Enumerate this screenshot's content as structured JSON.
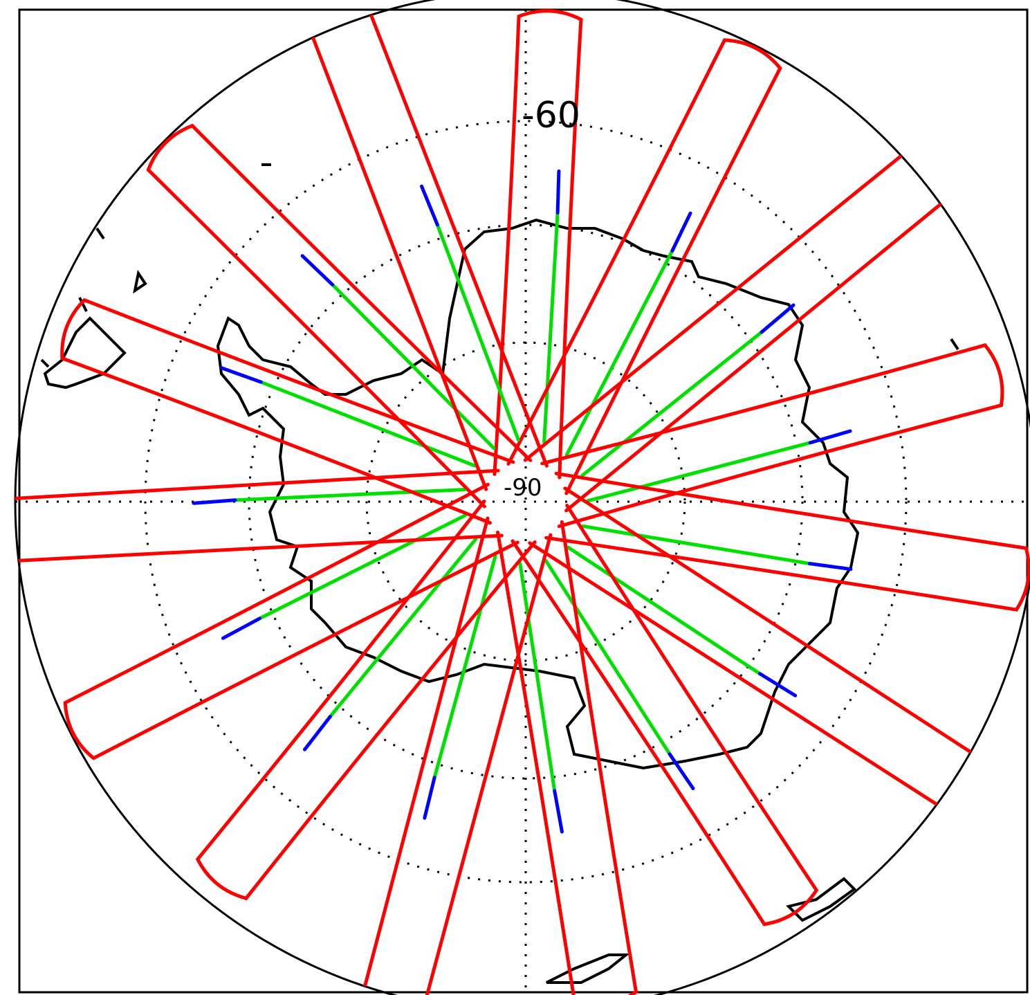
{
  "map": {
    "projection": "south-polar-stereographic",
    "latitude_labels": {
      "outer_circle": "-60",
      "pole": "-90"
    },
    "colors": {
      "frame": "#000000",
      "coastline": "#000000",
      "graticule": "#000000",
      "track_primary": "#ff0000",
      "track_secondary": "#00e000",
      "track_tertiary": "#0000ff"
    },
    "graticule": {
      "style": "dotted",
      "circles": 3,
      "meridian_lines": 2
    },
    "track_count": 15
  }
}
